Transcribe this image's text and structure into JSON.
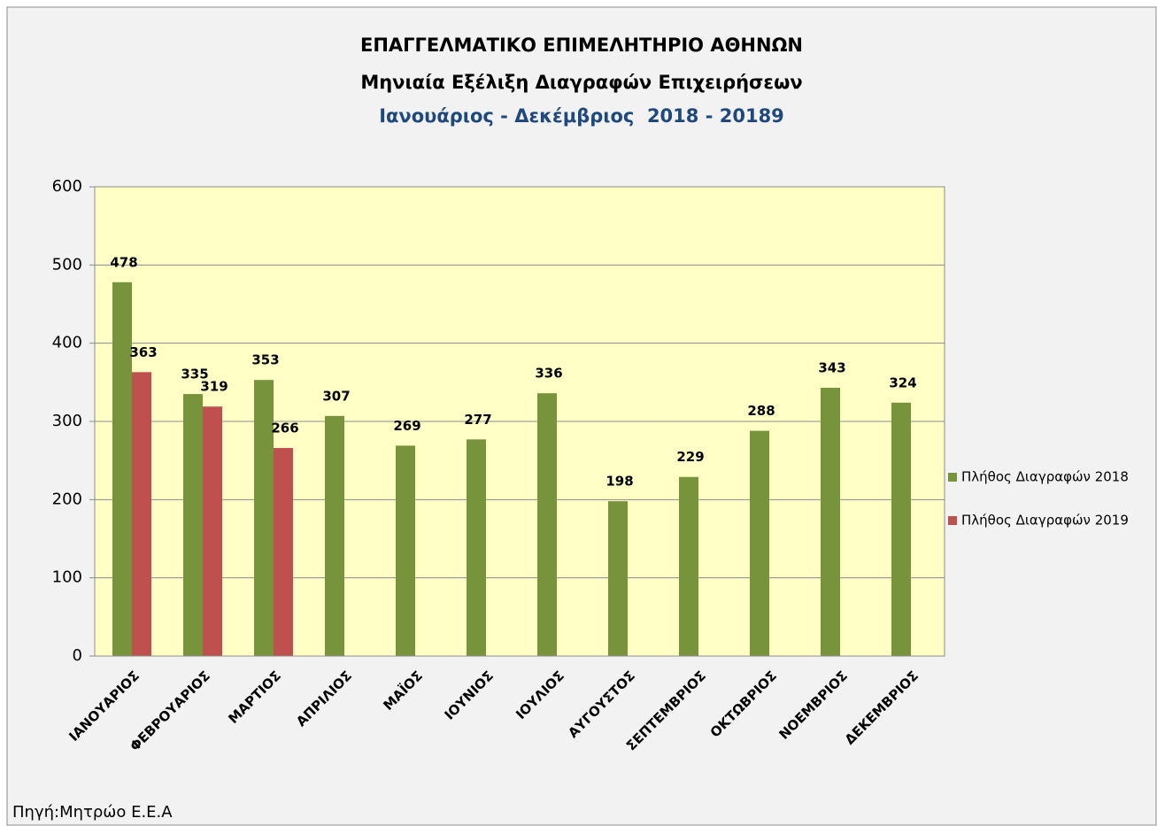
{
  "chart_data": {
    "type": "bar",
    "title": "ΕΠΑΓΓΕΛΜΑΤΙΚΟ ΕΠΙΜΕΛΗΤΗΡΙΟ ΑΘΗΝΩΝ",
    "subtitle": "Μηνιαία Εξέλιξη Διαγραφών Επιχειρήσεων",
    "period": "Ιανουάριος - Δεκέμβριος  2018 - 20189",
    "source": "Πηγή:Μητρώο Ε.Ε.Α",
    "categories": [
      "ΙΑΝΟΥΑΡΙΟΣ",
      "ΦΕΒΡΟΥΑΡΙΟΣ",
      "ΜΑΡΤΙΟΣ",
      "ΑΠΡΙΛΙΟΣ",
      "ΜΑΪΟΣ",
      "ΙΟΥΝΙΟΣ",
      "ΙΟΥΛΙΟΣ",
      "ΑΥΓΟΥΣΤΟΣ",
      "ΣΕΠΤΕΜΒΡΙΟΣ",
      "ΟΚΤΩΒΡΙΟΣ",
      "ΝΟΕΜΒΡΙΟΣ",
      "ΔΕΚΕΜΒΡΙΟΣ"
    ],
    "series": [
      {
        "name": "Πλήθος Διαγραφών 2018",
        "color": "#77933c",
        "values": [
          478,
          335,
          353,
          307,
          269,
          277,
          336,
          198,
          229,
          288,
          343,
          324
        ]
      },
      {
        "name": "Πλήθος Διαγραφών 2019",
        "color": "#c0504d",
        "values": [
          363,
          319,
          266,
          null,
          null,
          null,
          null,
          null,
          null,
          null,
          null,
          null
        ]
      }
    ],
    "ylim": [
      0,
      600
    ],
    "yticks": [
      0,
      100,
      200,
      300,
      400,
      500,
      600
    ],
    "grid": true,
    "legend": "right",
    "plot_background": "#ffffc6"
  }
}
